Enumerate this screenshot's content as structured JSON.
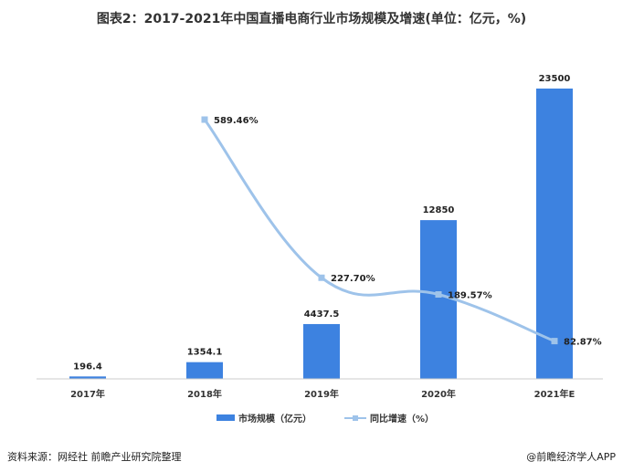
{
  "title": "图表2：2017-2021年中国直播电商行业市场规模及增速(单位：亿元，%)",
  "source": "资料来源：网经社 前瞻产业研究院整理",
  "brand": "@前瞻经济学人APP",
  "colors": {
    "bar": "#3d82e0",
    "line": "#9ec3ea"
  },
  "chart_data": {
    "type": "bar",
    "categories": [
      "2017年",
      "2018年",
      "2019年",
      "2020年",
      "2021年E"
    ],
    "series": [
      {
        "name": "市场规模（亿元）",
        "type": "bar",
        "values": [
          196.4,
          1354.1,
          4437.5,
          12850,
          23500
        ],
        "labels": [
          "196.4",
          "1354.1",
          "4437.5",
          "12850",
          "23500"
        ]
      },
      {
        "name": "同比增速（%）",
        "type": "line",
        "axis": "secondary",
        "values": [
          null,
          589.46,
          227.7,
          189.57,
          82.87
        ],
        "labels": [
          "",
          "589.46%",
          "227.70%",
          "189.57%",
          "82.87%"
        ]
      }
    ],
    "legend_position": "bottom",
    "grid": false
  }
}
